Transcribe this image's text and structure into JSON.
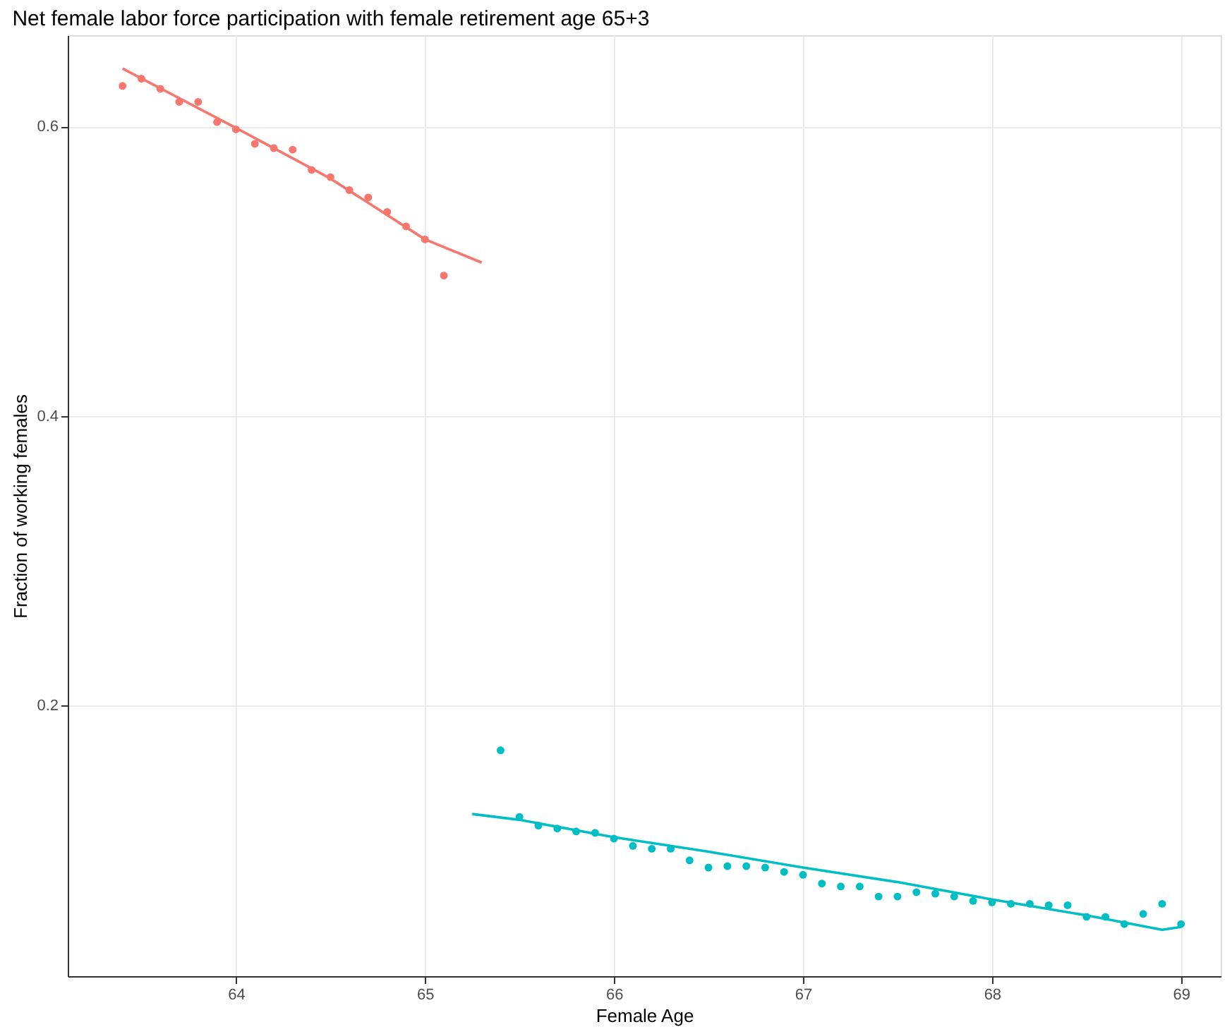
{
  "chart_data": {
    "type": "scatter",
    "title": "Net female labor force participation with female retirement age 65+3",
    "xlabel": "Female Age",
    "ylabel": "Fraction of working females",
    "xlim": [
      63.11,
      69.21
    ],
    "xticks": [
      64,
      65,
      66,
      67,
      68,
      69
    ],
    "ylim": [
      0.013,
      0.663
    ],
    "yticks": [
      0.2,
      0.4,
      0.6
    ],
    "grid": true,
    "marker": "circle",
    "series": [
      {
        "color": "#f8766d",
        "x": [
          63.4,
          63.5,
          63.6,
          63.7,
          63.8,
          63.9,
          64.0,
          64.1,
          64.2,
          64.3,
          64.4,
          64.5,
          64.6,
          64.7,
          64.8,
          64.9,
          65.0,
          65.1
        ],
        "values": [
          0.628,
          0.633,
          0.626,
          0.617,
          0.617,
          0.603,
          0.598,
          0.588,
          0.585,
          0.584,
          0.57,
          0.565,
          0.556,
          0.551,
          0.541,
          0.531,
          0.522,
          0.497
        ]
      },
      {
        "color": "#00bfc4",
        "x": [
          65.4,
          65.5,
          65.6,
          65.7,
          65.8,
          65.9,
          66.0,
          66.1,
          66.2,
          66.3,
          66.4,
          66.5,
          66.6,
          66.7,
          66.8,
          66.9,
          67.0,
          67.1,
          67.2,
          67.3,
          67.4,
          67.5,
          67.6,
          67.7,
          67.8,
          67.9,
          68.0,
          68.1,
          68.2,
          68.3,
          68.4,
          68.5,
          68.6,
          68.7,
          68.8,
          68.9,
          69.0
        ],
        "values": [
          0.169,
          0.123,
          0.117,
          0.115,
          0.113,
          0.112,
          0.108,
          0.103,
          0.101,
          0.101,
          0.093,
          0.088,
          0.089,
          0.089,
          0.088,
          0.085,
          0.083,
          0.077,
          0.075,
          0.075,
          0.068,
          0.068,
          0.071,
          0.07,
          0.068,
          0.065,
          0.064,
          0.063,
          0.063,
          0.062,
          0.062,
          0.054,
          0.054,
          0.049,
          0.056,
          0.063,
          0.049
        ]
      },
      {
        "type": "line",
        "marker": "none",
        "line_style": "solid",
        "color": "#f8766d",
        "x": [
          63.4,
          64.0,
          64.5,
          65.0,
          65.3
        ],
        "values": [
          0.64,
          0.599,
          0.564,
          0.522,
          0.506
        ]
      },
      {
        "type": "line",
        "marker": "none",
        "line_style": "solid",
        "color": "#00bfc4",
        "x": [
          65.25,
          65.5,
          66.0,
          66.5,
          67.0,
          67.5,
          68.0,
          68.5,
          68.9,
          69.0
        ],
        "values": [
          0.125,
          0.121,
          0.109,
          0.099,
          0.088,
          0.078,
          0.066,
          0.055,
          0.045,
          0.047
        ]
      }
    ]
  }
}
